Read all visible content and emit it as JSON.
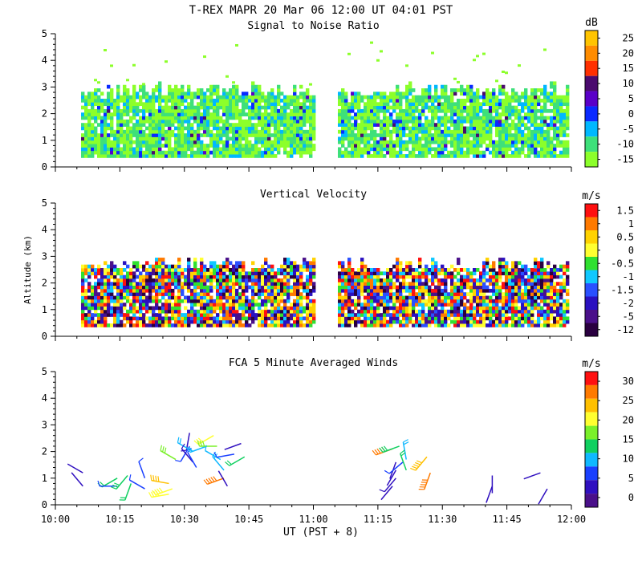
{
  "figure": {
    "title": "T-REX   MAPR 20 Mar 06   12:00 UT   04:01   PST",
    "xlabel": "UT  (PST + 8)",
    "x_ticks": [
      "10:00",
      "10:15",
      "10:30",
      "10:45",
      "11:00",
      "11:15",
      "11:30",
      "11:45",
      "12:00"
    ]
  },
  "chart_data": [
    {
      "id": "snr",
      "type": "heatmap",
      "title": "Signal to Noise Ratio",
      "xlabel": "UT  (PST + 8)",
      "ylabel": "",
      "xlim": [
        "10:00",
        "12:00"
      ],
      "ylim": [
        0,
        5
      ],
      "y_ticks": [
        "0",
        "1",
        "2",
        "3",
        "4",
        "5"
      ],
      "colorbar": {
        "unit": "dB",
        "labels": [
          "25",
          "20",
          "15",
          "10",
          "5",
          "0",
          "-5",
          "-10",
          "-15"
        ],
        "colors": [
          "#ffc400",
          "#ff8c00",
          "#ff3000",
          "#4a0a6e",
          "#5a00c8",
          "#0a2aff",
          "#00b8ff",
          "#3ee07a",
          "#8cff2a"
        ]
      },
      "data_gap": [
        "11:00",
        "11:05"
      ],
      "echo_top_km": 3,
      "notes": "Cloud echo mostly 0.3-3 km with strong cells below 2.5 km"
    },
    {
      "id": "vv",
      "type": "heatmap",
      "title": "Vertical Velocity",
      "xlabel": "UT  (PST + 8)",
      "ylabel": "Altitude (km)",
      "xlim": [
        "10:00",
        "12:00"
      ],
      "ylim": [
        0,
        5
      ],
      "y_ticks": [
        "0",
        "1",
        "2",
        "3",
        "4",
        "5"
      ],
      "colorbar": {
        "unit": "m/s",
        "labels": [
          "1.5",
          "1",
          "0.5",
          "0",
          "-0.5",
          "-1",
          "-1.5",
          "-2",
          "-5",
          "-12"
        ],
        "colors": [
          "#ff1010",
          "#ff7a00",
          "#ffd200",
          "#ffff30",
          "#30e030",
          "#10c8ff",
          "#2a50ff",
          "#2a10c0",
          "#4a108a",
          "#2a0040"
        ]
      },
      "data_gap": [
        "11:00",
        "11:05"
      ],
      "echo_top_km": 2.8
    },
    {
      "id": "winds",
      "type": "scatter",
      "title": "FCA 5 Minute Averaged Winds",
      "xlabel": "UT  (PST + 8)",
      "ylabel": "",
      "xlim": [
        "10:00",
        "12:00"
      ],
      "ylim": [
        0,
        5
      ],
      "y_ticks": [
        "0",
        "1",
        "2",
        "3",
        "4",
        "5"
      ],
      "colorbar": {
        "unit": "m/s",
        "labels": [
          "30",
          "25",
          "20",
          "15",
          "10",
          "5",
          "0"
        ],
        "colors": [
          "#ff1010",
          "#ff7a00",
          "#ffc000",
          "#ffff30",
          "#7af02a",
          "#10d060",
          "#10b8ff",
          "#1a40ff",
          "#3010c0",
          "#4a108a"
        ]
      },
      "barbs": [
        {
          "t": 8,
          "alt": 1.2,
          "dir": 300,
          "speed": 2
        },
        {
          "t": 8,
          "alt": 0.7,
          "dir": 320,
          "speed": 3
        },
        {
          "t": 18,
          "alt": 1.0,
          "dir": 240,
          "speed": 12
        },
        {
          "t": 18,
          "alt": 0.7,
          "dir": 270,
          "speed": 8
        },
        {
          "t": 21,
          "alt": 1.1,
          "dir": 220,
          "speed": 15
        },
        {
          "t": 22,
          "alt": 0.8,
          "dir": 200,
          "speed": 13
        },
        {
          "t": 26,
          "alt": 1.0,
          "dir": 340,
          "speed": 6
        },
        {
          "t": 26,
          "alt": 0.6,
          "dir": 300,
          "speed": 8
        },
        {
          "t": 33,
          "alt": 0.8,
          "dir": 280,
          "speed": 22
        },
        {
          "t": 33,
          "alt": 0.4,
          "dir": 260,
          "speed": 20
        },
        {
          "t": 34,
          "alt": 0.6,
          "dir": 250,
          "speed": 20
        },
        {
          "t": 35,
          "alt": 1.7,
          "dir": 300,
          "speed": 18
        },
        {
          "t": 39,
          "alt": 2.7,
          "dir": 190,
          "speed": 5
        },
        {
          "t": 39,
          "alt": 2.2,
          "dir": 210,
          "speed": 6
        },
        {
          "t": 40,
          "alt": 2.0,
          "dir": 300,
          "speed": 10
        },
        {
          "t": 40,
          "alt": 1.6,
          "dir": 320,
          "speed": 5
        },
        {
          "t": 41,
          "alt": 1.4,
          "dir": 330,
          "speed": 8
        },
        {
          "t": 44,
          "alt": 2.2,
          "dir": 250,
          "speed": 11
        },
        {
          "t": 46,
          "alt": 2.6,
          "dir": 240,
          "speed": 19
        },
        {
          "t": 47,
          "alt": 2.2,
          "dir": 270,
          "speed": 18
        },
        {
          "t": 48,
          "alt": 1.7,
          "dir": 300,
          "speed": 9
        },
        {
          "t": 49,
          "alt": 1.3,
          "dir": 320,
          "speed": 11
        },
        {
          "t": 49,
          "alt": 1.0,
          "dir": 250,
          "speed": 27
        },
        {
          "t": 50,
          "alt": 0.7,
          "dir": 330,
          "speed": 4
        },
        {
          "t": 52,
          "alt": 1.9,
          "dir": 260,
          "speed": 7
        },
        {
          "t": 54,
          "alt": 2.3,
          "dir": 250,
          "speed": 3
        },
        {
          "t": 55,
          "alt": 1.8,
          "dir": 240,
          "speed": 13
        },
        {
          "t": 98,
          "alt": 2.1,
          "dir": 250,
          "speed": 27
        },
        {
          "t": 100,
          "alt": 2.2,
          "dir": 250,
          "speed": 15
        },
        {
          "t": 99,
          "alt": 1.6,
          "dir": 200,
          "speed": 3
        },
        {
          "t": 99,
          "alt": 1.3,
          "dir": 210,
          "speed": 4
        },
        {
          "t": 99,
          "alt": 1.0,
          "dir": 220,
          "speed": 5
        },
        {
          "t": 98,
          "alt": 0.7,
          "dir": 220,
          "speed": 4
        },
        {
          "t": 101,
          "alt": 1.6,
          "dir": 230,
          "speed": 6
        },
        {
          "t": 102,
          "alt": 1.7,
          "dir": 350,
          "speed": 10
        },
        {
          "t": 102,
          "alt": 1.3,
          "dir": 340,
          "speed": 13
        },
        {
          "t": 108,
          "alt": 1.8,
          "dir": 220,
          "speed": 25
        },
        {
          "t": 109,
          "alt": 1.2,
          "dir": 200,
          "speed": 27
        },
        {
          "t": 127,
          "alt": 1.1,
          "dir": 180,
          "speed": 4
        },
        {
          "t": 127,
          "alt": 0.7,
          "dir": 200,
          "speed": 3
        },
        {
          "t": 141,
          "alt": 1.2,
          "dir": 250,
          "speed": 3
        },
        {
          "t": 143,
          "alt": 0.6,
          "dir": 210,
          "speed": 2
        }
      ]
    }
  ]
}
